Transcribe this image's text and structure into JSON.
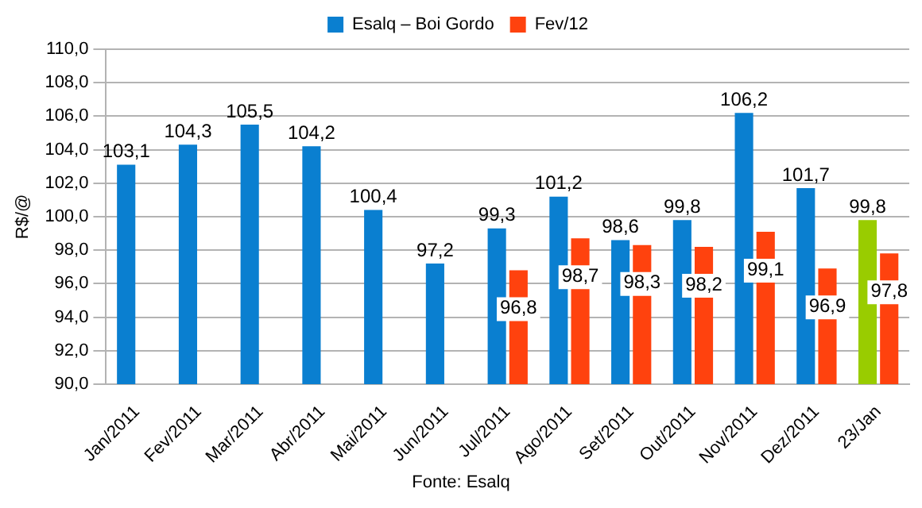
{
  "chart_data": {
    "type": "bar",
    "ylabel": "R$/@",
    "categories": [
      "Jan/2011",
      "Fev/2011",
      "Mar/2011",
      "Abr/2011",
      "Mai/2011",
      "Jun/2011",
      "Jul/2011",
      "Ago/2011",
      "Set/2011",
      "Out/2011",
      "Nov/2011",
      "Dez/2011",
      "23/Jan"
    ],
    "series": [
      {
        "name": "Esalq – Boi Gordo",
        "color": "#0a7fd0",
        "colors": [
          "#0a7fd0",
          "#0a7fd0",
          "#0a7fd0",
          "#0a7fd0",
          "#0a7fd0",
          "#0a7fd0",
          "#0a7fd0",
          "#0a7fd0",
          "#0a7fd0",
          "#0a7fd0",
          "#0a7fd0",
          "#0a7fd0",
          "#99cc00"
        ],
        "values": [
          103.1,
          104.3,
          105.5,
          104.2,
          100.4,
          97.2,
          99.3,
          101.2,
          98.6,
          99.8,
          106.2,
          101.7,
          99.8
        ],
        "value_labels": [
          "103,1",
          "104,3",
          "105,5",
          "104,2",
          "100,4",
          "97,2",
          "99,3",
          "101,2",
          "98,6",
          "99,8",
          "106,2",
          "101,7",
          "99,8"
        ]
      },
      {
        "name": "Fev/12",
        "color": "#ff420e",
        "values": [
          null,
          null,
          null,
          null,
          null,
          null,
          96.8,
          98.7,
          98.3,
          98.2,
          99.1,
          96.9,
          97.8
        ],
        "value_labels": [
          null,
          null,
          null,
          null,
          null,
          null,
          "96,8",
          "98,7",
          "98,3",
          "98,2",
          "99,1",
          "96,9",
          "97,8"
        ]
      }
    ],
    "ylim": [
      90,
      110
    ],
    "yticks": [
      {
        "value": 90,
        "label": "90,0"
      },
      {
        "value": 92,
        "label": "92,0"
      },
      {
        "value": 94,
        "label": "94,0"
      },
      {
        "value": 96,
        "label": "96,0"
      },
      {
        "value": 98,
        "label": "98,0"
      },
      {
        "value": 100,
        "label": "100,0"
      },
      {
        "value": 102,
        "label": "102,0"
      },
      {
        "value": 104,
        "label": "104,0"
      },
      {
        "value": 106,
        "label": "106,0"
      },
      {
        "value": 108,
        "label": "108,0"
      },
      {
        "value": 110,
        "label": "110,0"
      }
    ],
    "grid": "y",
    "legend": "top",
    "annotations": [
      "Fonte: Esalq"
    ]
  }
}
